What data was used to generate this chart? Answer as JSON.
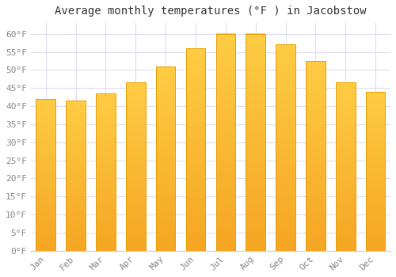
{
  "title": "Average monthly temperatures (°F ) in Jacobstow",
  "months": [
    "Jan",
    "Feb",
    "Mar",
    "Apr",
    "May",
    "Jun",
    "Jul",
    "Aug",
    "Sep",
    "Oct",
    "Nov",
    "Dec"
  ],
  "values": [
    42,
    41.5,
    43.5,
    46.5,
    51,
    56,
    60,
    60,
    57,
    52.5,
    46.5,
    44
  ],
  "bar_color_top": "#FFCC44",
  "bar_color_bottom": "#F5A623",
  "bar_edge_color": "#E8A000",
  "background_color": "#FFFFFF",
  "plot_bg_color": "#FFFFFF",
  "grid_color": "#DDDDEE",
  "ylim": [
    0,
    63
  ],
  "yticks": [
    0,
    5,
    10,
    15,
    20,
    25,
    30,
    35,
    40,
    45,
    50,
    55,
    60
  ],
  "title_fontsize": 10,
  "tick_fontsize": 8,
  "tick_color": "#888888",
  "spine_color": "#CCCCCC"
}
